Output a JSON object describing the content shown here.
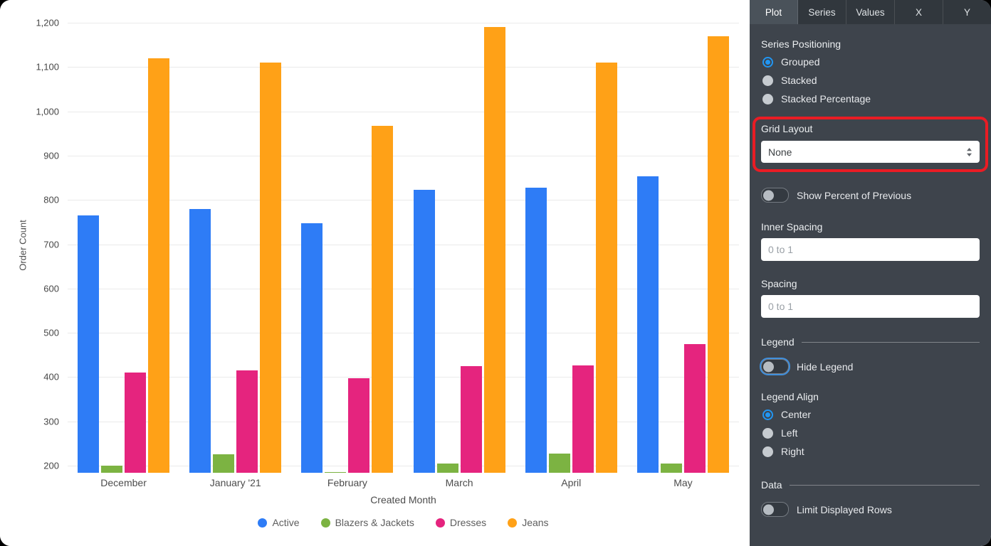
{
  "panel": {
    "tabs": [
      {
        "label": "Plot",
        "active": true
      },
      {
        "label": "Series",
        "active": false
      },
      {
        "label": "Values",
        "active": false
      },
      {
        "label": "X",
        "active": false
      },
      {
        "label": "Y",
        "active": false
      }
    ],
    "series_positioning": {
      "label": "Series Positioning",
      "options": [
        {
          "label": "Grouped",
          "selected": true
        },
        {
          "label": "Stacked",
          "selected": false
        },
        {
          "label": "Stacked Percentage",
          "selected": false
        }
      ]
    },
    "grid_layout": {
      "label": "Grid Layout",
      "value": "None"
    },
    "show_percent_of_previous": {
      "label": "Show Percent of Previous",
      "on": false
    },
    "inner_spacing": {
      "label": "Inner Spacing",
      "placeholder": "0 to 1",
      "value": ""
    },
    "spacing": {
      "label": "Spacing",
      "placeholder": "0 to 1",
      "value": ""
    },
    "legend_section": {
      "label": "Legend"
    },
    "hide_legend": {
      "label": "Hide Legend",
      "on": false
    },
    "legend_align": {
      "label": "Legend Align",
      "options": [
        {
          "label": "Center",
          "selected": true
        },
        {
          "label": "Left",
          "selected": false
        },
        {
          "label": "Right",
          "selected": false
        }
      ]
    },
    "data_section": {
      "label": "Data"
    },
    "limit_displayed_rows": {
      "label": "Limit Displayed Rows",
      "on": false
    }
  },
  "annotation": {
    "color": "#ea1c24"
  },
  "chart_data": {
    "type": "bar",
    "title": "",
    "xlabel": "Created Month",
    "ylabel": "Order Count",
    "categories": [
      "December",
      "January '21",
      "February",
      "March",
      "April",
      "May"
    ],
    "series": [
      {
        "name": "Active",
        "color": "#2e7cf6",
        "values": [
          765,
          780,
          748,
          823,
          828,
          853
        ]
      },
      {
        "name": "Blazers & Jackets",
        "color": "#7cb342",
        "values": [
          200,
          225,
          185,
          205,
          228,
          205
        ]
      },
      {
        "name": "Dresses",
        "color": "#e5247e",
        "values": [
          410,
          415,
          397,
          425,
          427,
          475
        ]
      },
      {
        "name": "Jeans",
        "color": "#ffa117",
        "values": [
          1120,
          1110,
          967,
          1190,
          1110,
          1170
        ]
      }
    ],
    "ylim": [
      184,
      1200
    ],
    "yticks": [
      200,
      300,
      400,
      500,
      600,
      700,
      800,
      900,
      1000,
      1100,
      1200
    ],
    "grid": true,
    "legend_position": "bottom-center"
  }
}
